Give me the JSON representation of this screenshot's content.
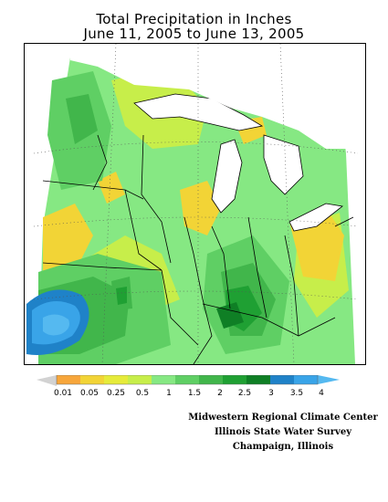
{
  "title": {
    "line1": "Total Precipitation in Inches",
    "line2": "June 11, 2005 to June 13, 2005"
  },
  "legend": {
    "ticks": [
      "0.01",
      "0.05",
      "0.25",
      "0.5",
      "1",
      "1.5",
      "2",
      "2.5",
      "3",
      "3.5",
      "4"
    ],
    "colors": {
      "below": "#d2d2d2",
      "0.01": "#f7a63b",
      "0.05": "#f2d436",
      "0.25": "#e6eb3a",
      "0.5": "#c7ee4a",
      "1": "#86e883",
      "1.5": "#5fcf64",
      "2": "#41b64b",
      "2.5": "#1fa033",
      "3": "#0f7f25",
      "3.5": "#1f82c8",
      "4": "#39a4e8",
      "above": "#55b9f0"
    }
  },
  "credits": {
    "line1": "Midwestern Regional Climate Center",
    "line2": "Illinois State Water Survey",
    "line3": "Champaign, Illinois"
  }
}
